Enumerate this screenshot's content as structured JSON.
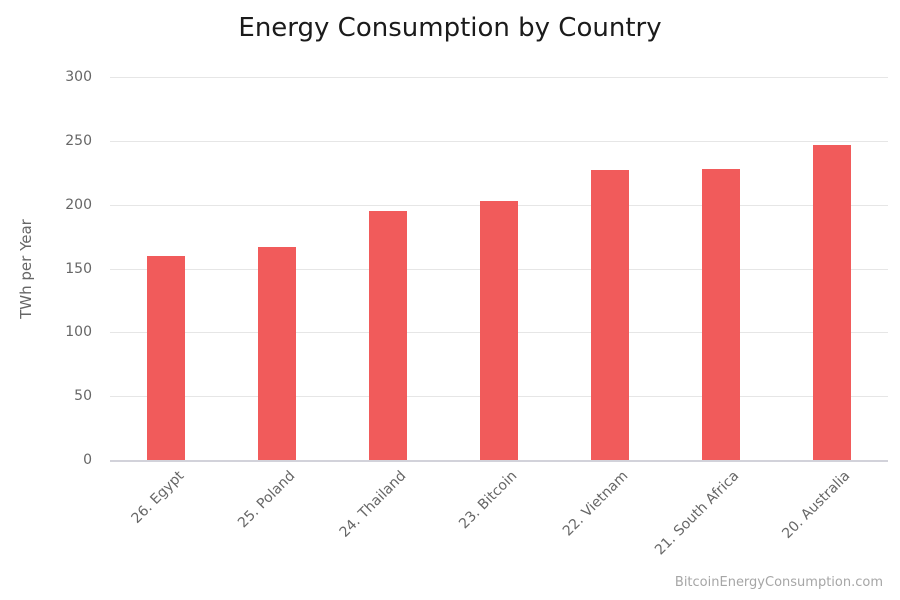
{
  "title": "Energy Consumption by Country",
  "watermark": "BitcoinEnergyConsumption.com",
  "colors": {
    "bar": "#f15b5b",
    "gridline": "#e6e6e6",
    "axis_line": "#d2d2da",
    "axis_text": "#666666",
    "title_text": "#1b1b1b",
    "watermark_text": "#a6a6a6",
    "background": "#ffffff"
  },
  "chart_data": {
    "type": "bar",
    "title": "Energy Consumption by Country",
    "categories": [
      "26. Egypt",
      "25. Poland",
      "24. Thailand",
      "23. Bitcoin",
      "22. Vietnam",
      "21. South Africa",
      "20. Australia"
    ],
    "values": [
      160,
      167,
      195,
      203,
      227,
      228,
      247
    ],
    "xlabel": "",
    "ylabel": "TWh per Year",
    "ylim": [
      0,
      300
    ],
    "yticks": [
      0,
      50,
      100,
      150,
      200,
      250,
      300
    ],
    "grid": true,
    "legend": false,
    "x_label_rotation_deg": -45,
    "bar_color": "#f15b5b",
    "source_watermark": "BitcoinEnergyConsumption.com"
  }
}
